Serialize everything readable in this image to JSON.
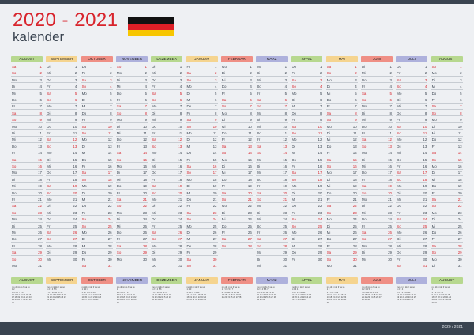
{
  "title": "2020 - 2021",
  "subtitle": "kalender",
  "footer": "2020 / 2021",
  "flag_colors": [
    "#111111",
    "#dd1f26",
    "#f7c600"
  ],
  "months": [
    {
      "name": "AUGUST",
      "year": 2020,
      "month": 8,
      "color": "#b7d88f"
    },
    {
      "name": "SEPTEMBER",
      "year": 2020,
      "month": 9,
      "color": "#f5d48f"
    },
    {
      "name": "OKTOBER",
      "year": 2020,
      "month": 10,
      "color": "#ef8f85"
    },
    {
      "name": "NOVEMBER",
      "year": 2020,
      "month": 11,
      "color": "#aeb1dc"
    },
    {
      "name": "DEZEMBER",
      "year": 2020,
      "month": 12,
      "color": "#b7d88f"
    },
    {
      "name": "JANUAR",
      "year": 2021,
      "month": 1,
      "color": "#f5d48f"
    },
    {
      "name": "FEBRUAR",
      "year": 2021,
      "month": 2,
      "color": "#ef8f85"
    },
    {
      "name": "MARZ",
      "year": 2021,
      "month": 3,
      "color": "#aeb1dc"
    },
    {
      "name": "APRIL",
      "year": 2021,
      "month": 4,
      "color": "#b7d88f"
    },
    {
      "name": "MAI",
      "year": 2021,
      "month": 5,
      "color": "#f5d48f"
    },
    {
      "name": "JUNI",
      "year": 2021,
      "month": 6,
      "color": "#ef8f85"
    },
    {
      "name": "JULI",
      "year": 2021,
      "month": 7,
      "color": "#aeb1dc"
    },
    {
      "name": "AUGUST",
      "year": 2021,
      "month": 8,
      "color": "#b7d88f"
    }
  ],
  "weekdays": [
    "So",
    "Mo",
    "Di",
    "Mi",
    "Do",
    "Fr",
    "Sa"
  ],
  "mini_weekdays": [
    "mo",
    "di",
    "mi",
    "do",
    "fr",
    "sa",
    "so"
  ]
}
